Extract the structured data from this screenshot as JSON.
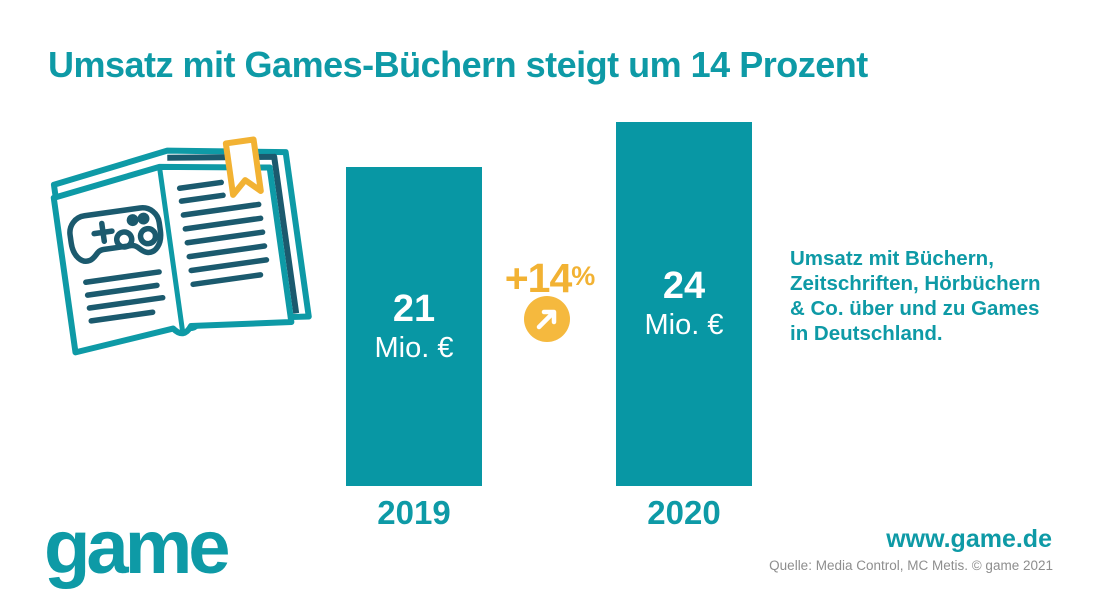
{
  "title": "Umsatz mit Games-Büchern steigt um 14 Prozent",
  "chart_data": {
    "type": "bar",
    "categories": [
      "2019",
      "2020"
    ],
    "values": [
      21,
      24
    ],
    "unit": "Mio. €",
    "title": "Umsatz mit Games-Büchern steigt um 14 Prozent",
    "xlabel": "",
    "ylabel": "",
    "ylim": [
      0,
      24
    ],
    "grid": false,
    "bar_color": "#0897A4",
    "annotation": "+14%"
  },
  "bars": [
    {
      "year": "2019",
      "value": "21",
      "unit": "Mio. €"
    },
    {
      "year": "2020",
      "value": "24",
      "unit": "Mio. €"
    }
  ],
  "annotation": {
    "change": "+14",
    "percent": "%"
  },
  "description": {
    "lines": [
      "Umsatz mit Büchern,",
      "Zeitschriften, Hörbüchern",
      "& Co. über und zu Games",
      "in Deutschland."
    ]
  },
  "footer": {
    "logo": "game",
    "website": "www.game.de",
    "source": "Quelle: Media Control, MC Metis. © game 2021"
  },
  "icons": {
    "book": "open-book-with-gamepad-icon",
    "arrow": "trend-up-arrow-icon"
  },
  "colors": {
    "teal": "#0E9AA6",
    "bar_teal": "#0897A4",
    "dark_teal": "#1B5A6E",
    "yellow": "#F2B233",
    "gray": "#8E8E8E"
  }
}
